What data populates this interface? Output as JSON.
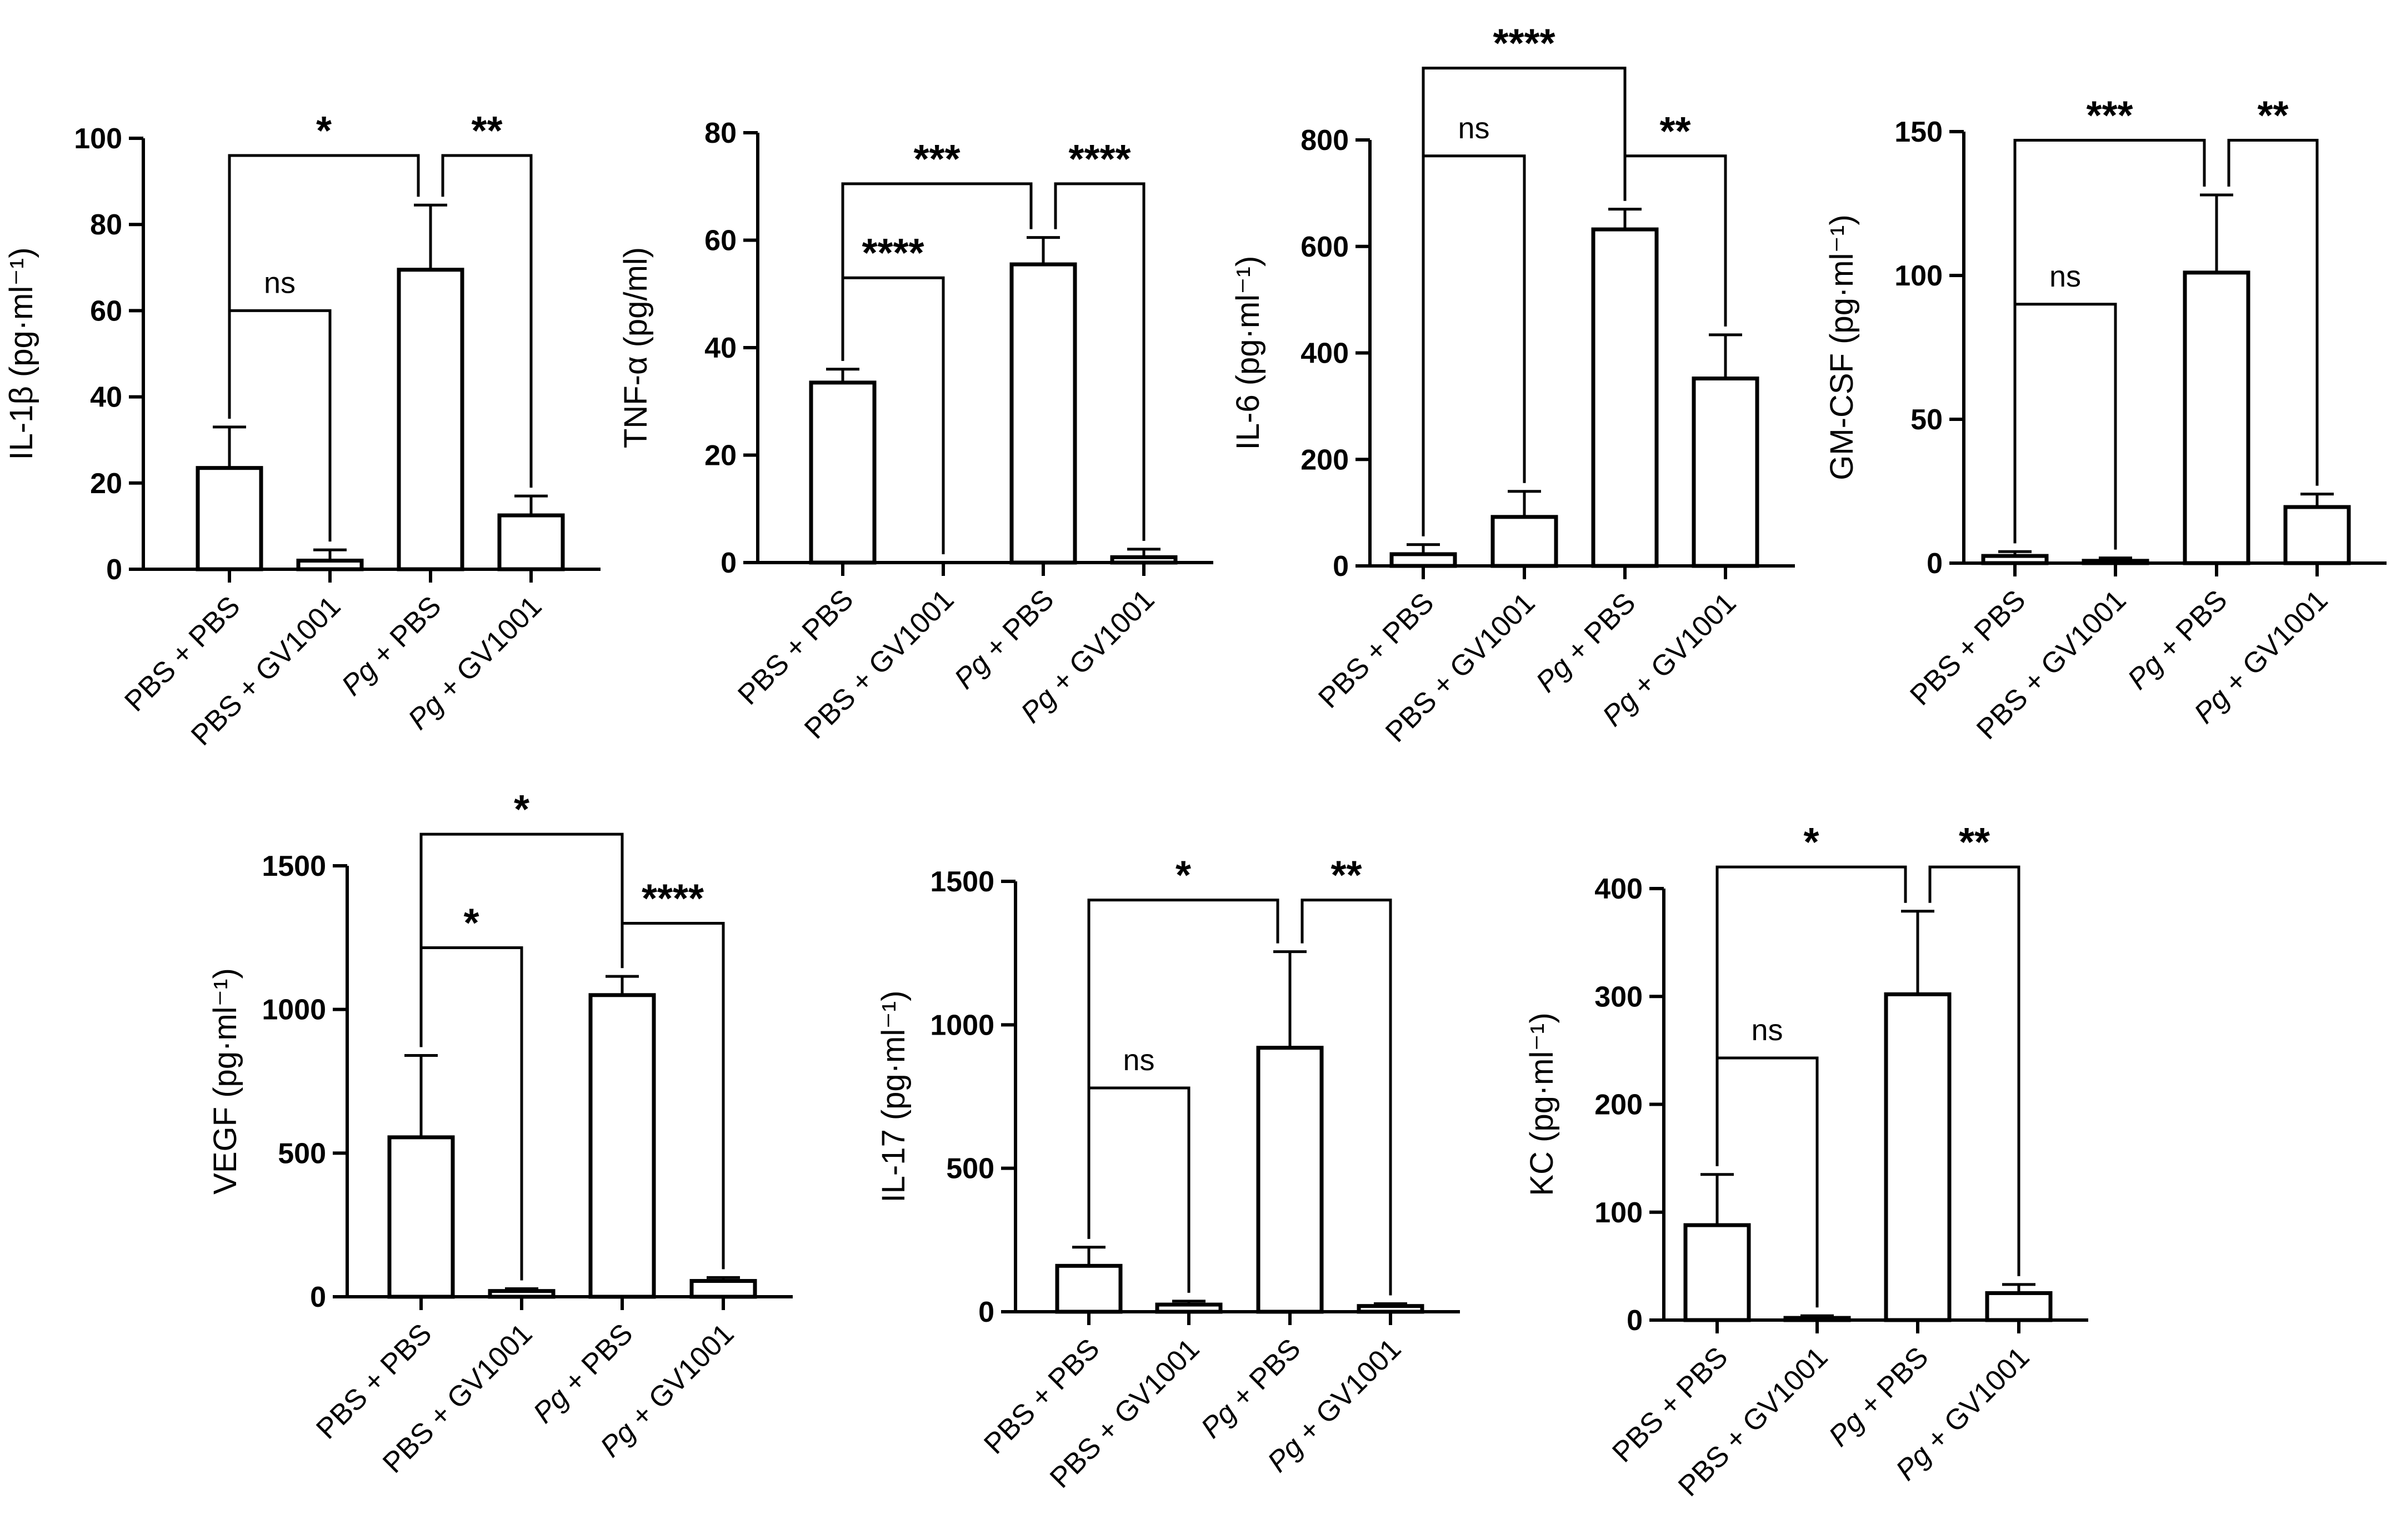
{
  "chart_data": [
    {
      "type": "bar",
      "ylabel": "IL-1β (pg·ml⁻¹)",
      "categories": [
        "PBS + PBS",
        "PBS + GV1001",
        "Pg + PBS",
        "Pg + GV1001"
      ],
      "values": [
        23.5,
        2,
        69.5,
        12.5
      ],
      "errors": [
        9.5,
        2.5,
        15,
        4.5
      ],
      "ylim": [
        0,
        100
      ],
      "yticks": [
        0,
        20,
        40,
        60,
        80,
        100
      ],
      "significance": [
        {
          "from": 0,
          "to": 1,
          "label": "ns",
          "level": 60
        },
        {
          "from": 0,
          "to": 2,
          "label": "*",
          "level": 96
        },
        {
          "from": 2,
          "to": 3,
          "label": "**",
          "level": 96
        }
      ]
    },
    {
      "type": "bar",
      "ylabel": "TNF-α (pg/ml)",
      "categories": [
        "PBS + PBS",
        "PBS + GV1001",
        "Pg + PBS",
        "Pg + GV1001"
      ],
      "values": [
        33.5,
        0,
        55.5,
        1
      ],
      "errors": [
        2.5,
        0,
        5,
        1.5
      ],
      "ylim": [
        0,
        80
      ],
      "yticks": [
        0,
        20,
        40,
        60,
        80
      ],
      "significance": [
        {
          "from": 0,
          "to": 1,
          "label": "****",
          "level": 53
        },
        {
          "from": 0,
          "to": 2,
          "label": "***",
          "level": 70.5
        },
        {
          "from": 2,
          "to": 3,
          "label": "****",
          "level": 70.5
        }
      ]
    },
    {
      "type": "bar",
      "ylabel": "IL-6 (pg·ml⁻¹)",
      "categories": [
        "PBS + PBS",
        "PBS + GV1001",
        "Pg + PBS",
        "Pg + GV1001"
      ],
      "values": [
        22,
        92,
        632,
        352
      ],
      "errors": [
        18,
        48,
        38,
        82
      ],
      "ylim": [
        0,
        800
      ],
      "yticks": [
        0,
        200,
        400,
        600,
        800
      ],
      "significance": [
        {
          "from": 0,
          "to": 1,
          "label": "ns",
          "level": 770
        },
        {
          "from": 2,
          "to": 3,
          "label": "**",
          "level": 770
        },
        {
          "from": 0,
          "to": 2,
          "label": "****",
          "level": 935
        }
      ]
    },
    {
      "type": "bar",
      "ylabel": "GM-CSF (pg·ml⁻¹)",
      "categories": [
        "PBS + PBS",
        "PBS + GV1001",
        "Pg + PBS",
        "Pg + GV1001"
      ],
      "values": [
        2.5,
        0.8,
        101,
        19.5
      ],
      "errors": [
        1.5,
        1,
        27,
        4.5
      ],
      "ylim": [
        0,
        150
      ],
      "yticks": [
        0,
        50,
        100,
        150
      ],
      "significance": [
        {
          "from": 0,
          "to": 1,
          "label": "ns",
          "level": 90
        },
        {
          "from": 0,
          "to": 2,
          "label": "***",
          "level": 147
        },
        {
          "from": 2,
          "to": 3,
          "label": "**",
          "level": 147
        }
      ]
    },
    {
      "type": "bar",
      "ylabel": "VEGF (pg·ml⁻¹)",
      "categories": [
        "PBS + PBS",
        "PBS + GV1001",
        "Pg + PBS",
        "Pg + GV1001"
      ],
      "values": [
        555,
        20,
        1050,
        55
      ],
      "errors": [
        285,
        8,
        65,
        12
      ],
      "ylim": [
        0,
        1500
      ],
      "yticks": [
        0,
        500,
        1000,
        1500
      ],
      "significance": [
        {
          "from": 0,
          "to": 1,
          "label": "*",
          "level": 1215
        },
        {
          "from": 2,
          "to": 3,
          "label": "****",
          "level": 1300
        },
        {
          "from": 0,
          "to": 2,
          "label": "*",
          "level": 1610
        }
      ]
    },
    {
      "type": "bar",
      "ylabel": "IL-17 (pg·ml⁻¹)",
      "categories": [
        "PBS + PBS",
        "PBS + GV1001",
        "Pg + PBS",
        "Pg + GV1001"
      ],
      "values": [
        160,
        25,
        920,
        20
      ],
      "errors": [
        65,
        12,
        335,
        8
      ],
      "ylim": [
        0,
        1500
      ],
      "yticks": [
        0,
        500,
        1000,
        1500
      ],
      "significance": [
        {
          "from": 0,
          "to": 1,
          "label": "ns",
          "level": 780
        },
        {
          "from": 0,
          "to": 2,
          "label": "*",
          "level": 1435
        },
        {
          "from": 2,
          "to": 3,
          "label": "**",
          "level": 1435
        }
      ]
    },
    {
      "type": "bar",
      "ylabel": "KC (pg·ml⁻¹)",
      "categories": [
        "PBS + PBS",
        "PBS + GV1001",
        "Pg + PBS",
        "Pg + GV1001"
      ],
      "values": [
        88,
        2,
        302,
        25
      ],
      "errors": [
        47,
        2,
        77,
        8
      ],
      "ylim": [
        0,
        400
      ],
      "yticks": [
        0,
        100,
        200,
        300,
        400
      ],
      "significance": [
        {
          "from": 0,
          "to": 1,
          "label": "ns",
          "level": 243
        },
        {
          "from": 0,
          "to": 2,
          "label": "*",
          "level": 420
        },
        {
          "from": 2,
          "to": 3,
          "label": "**",
          "level": 420
        }
      ]
    }
  ]
}
